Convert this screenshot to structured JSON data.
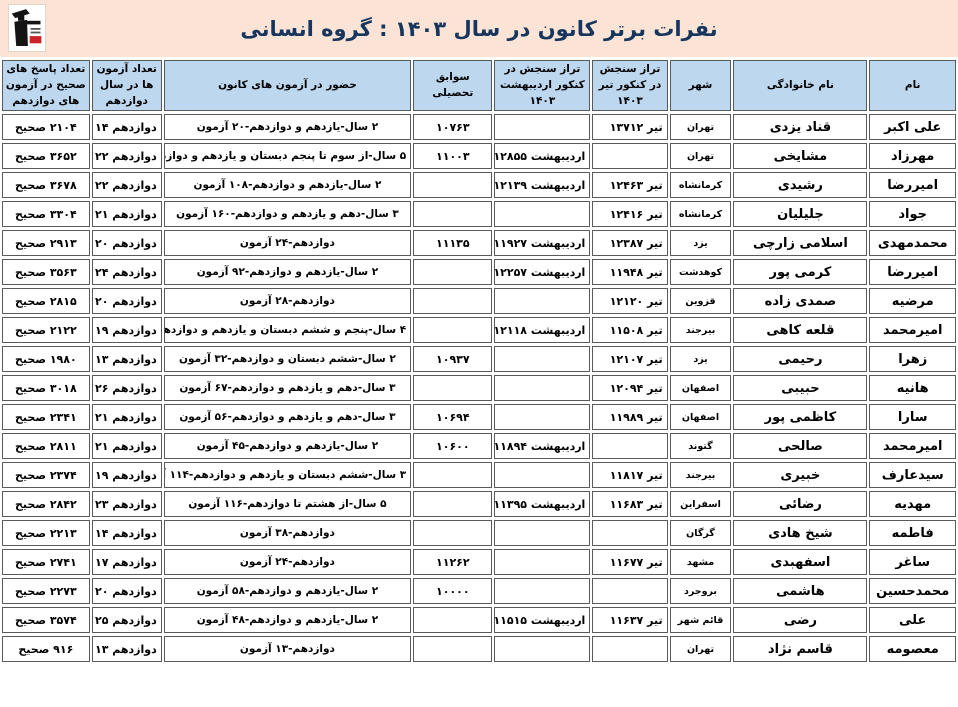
{
  "title": "نفرات برتر کانون در سال ۱۴۰۳ : گروه انسانی",
  "logo": {
    "name": "kanoon-logo"
  },
  "colors": {
    "title_bg": "#fbe3d6",
    "title_text": "#17365d",
    "header_bg": "#bdd7ee",
    "cell_border": "#5a5a5a",
    "logo_red": "#cc2229"
  },
  "table": {
    "headers": [
      {
        "key": "name",
        "label": "نام"
      },
      {
        "key": "lastname",
        "label": "نام خانوادگی"
      },
      {
        "key": "city",
        "label": "شهر"
      },
      {
        "key": "tir",
        "label": "تراز سنجش  در کنکور تیر ۱۴۰۳"
      },
      {
        "key": "ordibehesht",
        "label": "تراز سنجش در کنکور اردیبهشت ۱۴۰۳"
      },
      {
        "key": "savabegh",
        "label": "سوابق تحصیلی"
      },
      {
        "key": "hozur",
        "label": "حضور در آزمون های کانون"
      },
      {
        "key": "exams12",
        "label": "تعداد آزمون ها در سال دوازدهم"
      },
      {
        "key": "correct",
        "label": "تعداد پاسخ های صحیح در آزمون های دوازدهم"
      }
    ],
    "rows": [
      {
        "name": "علی اکبر",
        "lastname": "قناد یزدی",
        "city": "تهران",
        "tir": "تیر ۱۳۷۱۲",
        "ordibehesht": "",
        "savabegh": "۱۰۷۶۳",
        "hozur": "۲ سال-یازدهم و دوازدهم-۲۰ آزمون",
        "exams12": "دوازدهم ۱۴",
        "correct": "۲۱۰۴ صحیح"
      },
      {
        "name": "مهرزاد",
        "lastname": "مشایخی",
        "city": "تهران",
        "tir": "",
        "ordibehesht": "اردیبهشت ۱۲۸۵۵",
        "savabegh": "۱۱۰۰۳",
        "hozur": "۵ سال-از سوم تا پنجم دبستان و یازدهم و دوازدهم-۸۶ آزمون",
        "exams12": "دوازدهم ۲۲",
        "correct": "۳۶۵۲ صحیح"
      },
      {
        "name": "امیررضا",
        "lastname": "رشیدی",
        "city": "کرمانشاه",
        "tir": "تیر ۱۲۴۶۳",
        "ordibehesht": "اردیبهشت ۱۲۱۳۹",
        "savabegh": "",
        "hozur": "۲ سال-یازدهم و دوازدهم-۱۰۸ آزمون",
        "exams12": "دوازدهم ۲۲",
        "correct": "۳۶۷۸ صحیح"
      },
      {
        "name": "جواد",
        "lastname": "جلیلیان",
        "city": "کرمانشاه",
        "tir": "تیر ۱۲۴۱۶",
        "ordibehesht": "",
        "savabegh": "",
        "hozur": "۳ سال-دهم و یازدهم و دوازدهم-۱۶۰ آزمون",
        "exams12": "دوازدهم ۲۱",
        "correct": "۳۳۰۴ صحیح"
      },
      {
        "name": "محمدمهدی",
        "lastname": "اسلامی زارچی",
        "city": "یزد",
        "tir": "تیر ۱۲۳۸۷",
        "ordibehesht": "اردیبهشت ۱۱۹۲۷",
        "savabegh": "۱۱۱۳۵",
        "hozur": "دوازدهم-۲۴ آزمون",
        "exams12": "دوازدهم ۲۰",
        "correct": "۲۹۱۳ صحیح"
      },
      {
        "name": "امیررضا",
        "lastname": "کرمی پور",
        "city": "کوهدشت",
        "tir": "تیر ۱۱۹۴۸",
        "ordibehesht": "اردیبهشت ۱۲۲۵۷",
        "savabegh": "",
        "hozur": "۲ سال-یازدهم و دوازدهم-۹۲ آزمون",
        "exams12": "دوازدهم ۲۴",
        "correct": "۳۵۶۳ صحیح"
      },
      {
        "name": "مرضیه",
        "lastname": "صمدی زاده",
        "city": "قزوین",
        "tir": "تیر ۱۲۱۲۰",
        "ordibehesht": "",
        "savabegh": "",
        "hozur": "دوازدهم-۲۸ آزمون",
        "exams12": "دوازدهم ۲۰",
        "correct": "۲۸۱۵ صحیح"
      },
      {
        "name": "امیرمحمد",
        "lastname": "قلعه کاهی",
        "city": "بیرجند",
        "tir": "تیر ۱۱۵۰۸",
        "ordibehesht": "اردیبهشت ۱۲۱۱۸",
        "savabegh": "",
        "hozur": "۴ سال-پنجم و ششم دبستان و یازدهم و دوازدهم-۱۰۰ آزمون",
        "exams12": "دوازدهم ۱۹",
        "correct": "۲۱۲۲ صحیح"
      },
      {
        "name": "زهرا",
        "lastname": "رحیمی",
        "city": "یزد",
        "tir": "تیر ۱۲۱۰۷",
        "ordibehesht": "",
        "savabegh": "۱۰۹۳۷",
        "hozur": "۲ سال-ششم دبستان و دوازدهم-۳۲ آزمون",
        "exams12": "دوازدهم ۱۳",
        "correct": "۱۹۸۰ صحیح"
      },
      {
        "name": "هانیه",
        "lastname": "حبیبی",
        "city": "اصفهان",
        "tir": "تیر ۱۲۰۹۴",
        "ordibehesht": "",
        "savabegh": "",
        "hozur": "۳ سال-دهم و یازدهم و دوازدهم-۶۷ آزمون",
        "exams12": "دوازدهم ۲۶",
        "correct": "۳۰۱۸ صحیح"
      },
      {
        "name": "سارا",
        "lastname": "کاظمی پور",
        "city": "اصفهان",
        "tir": "تیر ۱۱۹۸۹",
        "ordibehesht": "",
        "savabegh": "۱۰۶۹۴",
        "hozur": "۳ سال-دهم و یازدهم و دوازدهم-۵۶ آزمون",
        "exams12": "دوازدهم ۲۱",
        "correct": "۲۳۴۱ صحیح"
      },
      {
        "name": "امیرمحمد",
        "lastname": "صالحی",
        "city": "گتوند",
        "tir": "",
        "ordibehesht": "اردیبهشت ۱۱۸۹۴",
        "savabegh": "۱۰۶۰۰",
        "hozur": "۲ سال-یازدهم و دوازدهم-۴۵ آزمون",
        "exams12": "دوازدهم ۲۱",
        "correct": "۲۸۱۱ صحیح"
      },
      {
        "name": "سیدعارف",
        "lastname": "خبیری",
        "city": "بیرجند",
        "tir": "تیر ۱۱۸۱۷",
        "ordibehesht": "",
        "savabegh": "",
        "hozur": "۳ سال-ششم دبستان و یازدهم و دوازدهم-۱۱۴ آزمون",
        "exams12": "دوازدهم ۱۹",
        "correct": "۲۳۷۴ صحیح"
      },
      {
        "name": "مهدیه",
        "lastname": "رضائی",
        "city": "اسفراین",
        "tir": "تیر ۱۱۶۸۳",
        "ordibehesht": "اردیبهشت ۱۱۳۹۵",
        "savabegh": "",
        "hozur": "۵ سال-از هشتم تا دوازدهم-۱۱۶ آزمون",
        "exams12": "دوازدهم ۲۳",
        "correct": "۲۸۴۲ صحیح"
      },
      {
        "name": "فاطمه",
        "lastname": "شیخ هادی",
        "city": "گرگان",
        "tir": "",
        "ordibehesht": "",
        "savabegh": "",
        "hozur": "دوازدهم-۳۸ آزمون",
        "exams12": "دوازدهم ۱۴",
        "correct": "۲۲۱۳ صحیح"
      },
      {
        "name": "ساغر",
        "lastname": "اسفهبدی",
        "city": "مشهد",
        "tir": "تیر ۱۱۶۷۷",
        "ordibehesht": "",
        "savabegh": "۱۱۲۶۲",
        "hozur": "دوازدهم-۲۴ آزمون",
        "exams12": "دوازدهم ۱۷",
        "correct": "۲۷۴۱ صحیح"
      },
      {
        "name": "محمدحسین",
        "lastname": "هاشمی",
        "city": "بروجرد",
        "tir": "",
        "ordibehesht": "",
        "savabegh": "۱۰۰۰۰",
        "hozur": "۲ سال-یازدهم و دوازدهم-۵۸ آزمون",
        "exams12": "دوازدهم ۲۰",
        "correct": "۲۲۷۳ صحیح"
      },
      {
        "name": "علی",
        "lastname": "رضی",
        "city": "قائم شهر",
        "tir": "تیر ۱۱۶۳۷",
        "ordibehesht": "اردیبهشت ۱۱۵۱۵",
        "savabegh": "",
        "hozur": "۲ سال-یازدهم و دوازدهم-۴۸ آزمون",
        "exams12": "دوازدهم ۲۵",
        "correct": "۳۵۷۴ صحیح"
      },
      {
        "name": "معصومه",
        "lastname": "قاسم نژاد",
        "city": "تهران",
        "tir": "",
        "ordibehesht": "",
        "savabegh": "",
        "hozur": "دوازدهم-۱۳ آزمون",
        "exams12": "دوازدهم ۱۳",
        "correct": "۹۱۶ صحیح"
      }
    ]
  }
}
